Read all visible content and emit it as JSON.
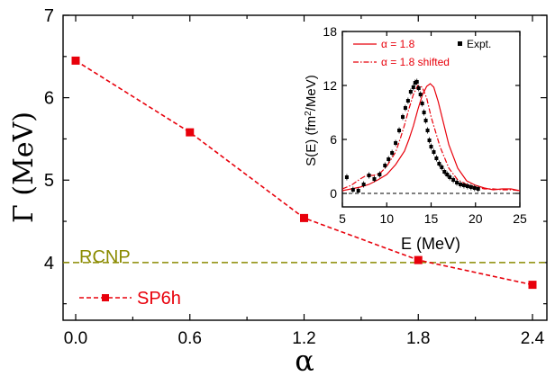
{
  "colors": {
    "series": "#e8000b",
    "reference": "#8b8b00",
    "expt": "#000000",
    "zero": "#000000"
  },
  "chart_data": [
    {
      "type": "line",
      "ylabel": "Γ (MeV)",
      "xlabel": "α",
      "xlim": [
        0.0,
        2.4
      ],
      "ylim": [
        3.3,
        7.0
      ],
      "xticks": [
        "0.0",
        "0.6",
        "1.2",
        "1.8",
        "2.4"
      ],
      "yticks": [
        "4",
        "5",
        "6",
        "7"
      ],
      "xtick_values": [
        0.0,
        0.6,
        1.2,
        1.8,
        2.4
      ],
      "ytick_values": [
        4,
        5,
        6,
        7
      ],
      "series": [
        {
          "name": "SP6h",
          "x": [
            0.0,
            0.6,
            1.2,
            1.8,
            2.4
          ],
          "y": [
            6.45,
            5.58,
            4.54,
            4.03,
            3.73
          ]
        }
      ],
      "reference_line": {
        "name": "RCNP",
        "y": 4.0
      },
      "grid": false,
      "legend": "bottom-left"
    },
    {
      "type": "line",
      "xlabel": "E (MeV)",
      "ylabel": "S(E) (fm²/MeV)",
      "xlim": [
        5,
        25
      ],
      "ylim": [
        -1.5,
        18
      ],
      "xticks": [
        "5",
        "10",
        "15",
        "20",
        "25"
      ],
      "yticks": [
        "0",
        "6",
        "12",
        "18"
      ],
      "xtick_values": [
        5,
        10,
        15,
        20,
        25
      ],
      "ytick_values": [
        0,
        6,
        12,
        18
      ],
      "series": [
        {
          "name": "α = 1.8",
          "x": [
            5,
            6,
            7,
            8,
            9,
            10,
            11,
            12,
            12.5,
            13,
            13.5,
            14,
            14.5,
            14.9,
            15.3,
            15.8,
            16.3,
            17,
            18,
            19,
            20,
            21,
            22,
            23,
            24,
            25
          ],
          "y": [
            0.3,
            0.5,
            0.7,
            1.0,
            1.5,
            2.1,
            3.2,
            4.7,
            6.0,
            7.5,
            9.3,
            10.9,
            11.9,
            12.2,
            11.8,
            10.2,
            8.2,
            5.4,
            2.8,
            1.4,
            0.9,
            0.6,
            0.4,
            0.5,
            0.5,
            0.3
          ]
        },
        {
          "name": "α = 1.8 shifted",
          "x": [
            5,
            6,
            7,
            7.7,
            8.5,
            9.2,
            10,
            11,
            11.5,
            12,
            12.5,
            13,
            13.5,
            14,
            14.5,
            15,
            16,
            17,
            18,
            19,
            20,
            21,
            22,
            23,
            24,
            25
          ],
          "y": [
            0.5,
            0.9,
            1.6,
            2.0,
            2.0,
            2.2,
            3.0,
            4.6,
            6.0,
            7.6,
            9.4,
            11.0,
            12.0,
            11.8,
            10.6,
            8.5,
            5.2,
            2.8,
            1.5,
            1.0,
            0.7,
            0.5,
            0.5,
            0.4,
            0.4,
            0.3
          ]
        },
        {
          "name": "Expt.",
          "x": [
            5.5,
            6.2,
            6.8,
            7.4,
            8.0,
            8.6,
            9.2,
            9.8,
            10.2,
            10.6,
            11.0,
            11.4,
            11.8,
            12.1,
            12.4,
            12.7,
            13.0,
            13.2,
            13.4,
            13.6,
            13.8,
            14.0,
            14.2,
            14.4,
            14.6,
            14.8,
            15.0,
            15.3,
            15.6,
            15.9,
            16.2,
            16.5,
            16.8,
            17.1,
            17.5,
            17.9,
            18.3,
            18.7,
            19.1,
            19.5,
            19.9,
            20.3
          ],
          "y": [
            1.8,
            0.4,
            0.3,
            1.0,
            2.0,
            1.6,
            2.1,
            3.1,
            3.8,
            4.5,
            5.6,
            7.0,
            8.5,
            9.5,
            10.3,
            11.3,
            11.8,
            12.3,
            12.4,
            11.7,
            11.0,
            10.0,
            9.0,
            8.1,
            7.0,
            5.9,
            5.2,
            4.6,
            3.9,
            3.3,
            2.9,
            2.4,
            2.1,
            1.8,
            1.5,
            1.2,
            1.0,
            0.9,
            0.8,
            0.7,
            0.6,
            0.5
          ]
        }
      ],
      "reference_line": {
        "y": 0
      },
      "legend": "top"
    }
  ]
}
